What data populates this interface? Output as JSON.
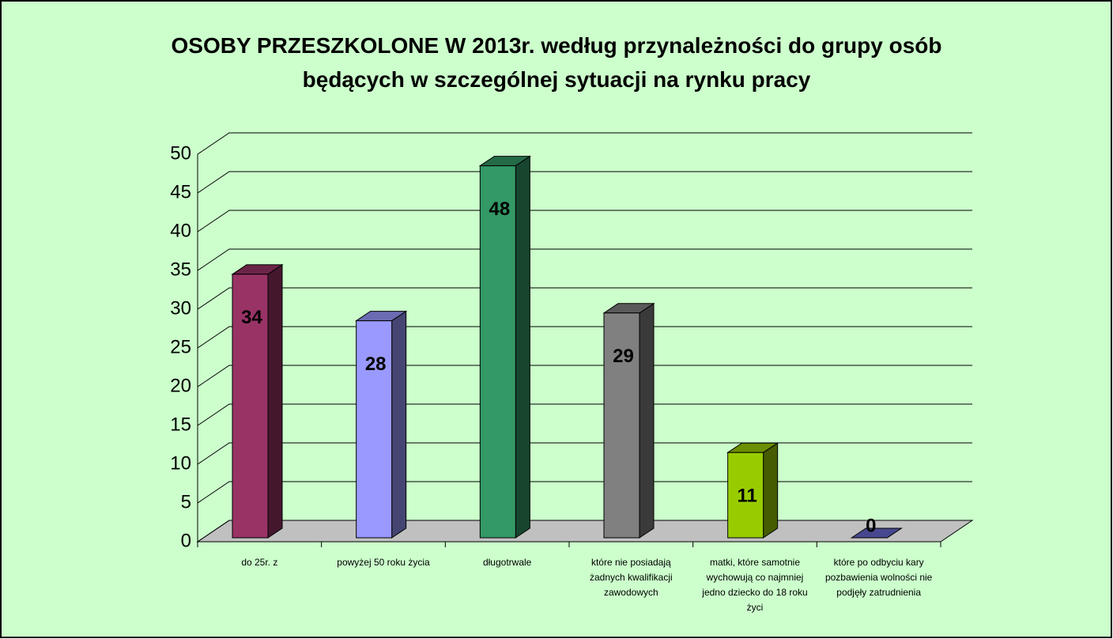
{
  "chart_data": {
    "type": "bar3d",
    "title": "OSOBY PRZESZKOLONE W  2013r. według przynależności do grupy osób będących w szczególnej sytuacji na rynku pracy",
    "categories": [
      "do 25r. z",
      "powyżej 50 roku życia",
      "długotrwale",
      "które nie posiadają żadnych kwalifikacji zawodowych",
      "matki, które samotnie wychowują co najmniej jedno dziecko do 18 roku życi",
      "które po odbyciu kary pozbawienia wolności nie podjęły zatrudnienia"
    ],
    "values": [
      34,
      28,
      48,
      29,
      11,
      0
    ],
    "colors": [
      "#993366",
      "#9999ff",
      "#339966",
      "#808080",
      "#99cc00",
      "#6666cc"
    ],
    "ylim": [
      0,
      50
    ],
    "yticks": [
      0,
      5,
      10,
      15,
      20,
      25,
      30,
      35,
      40,
      45,
      50
    ],
    "grid": true,
    "background": "#ccffcc"
  }
}
